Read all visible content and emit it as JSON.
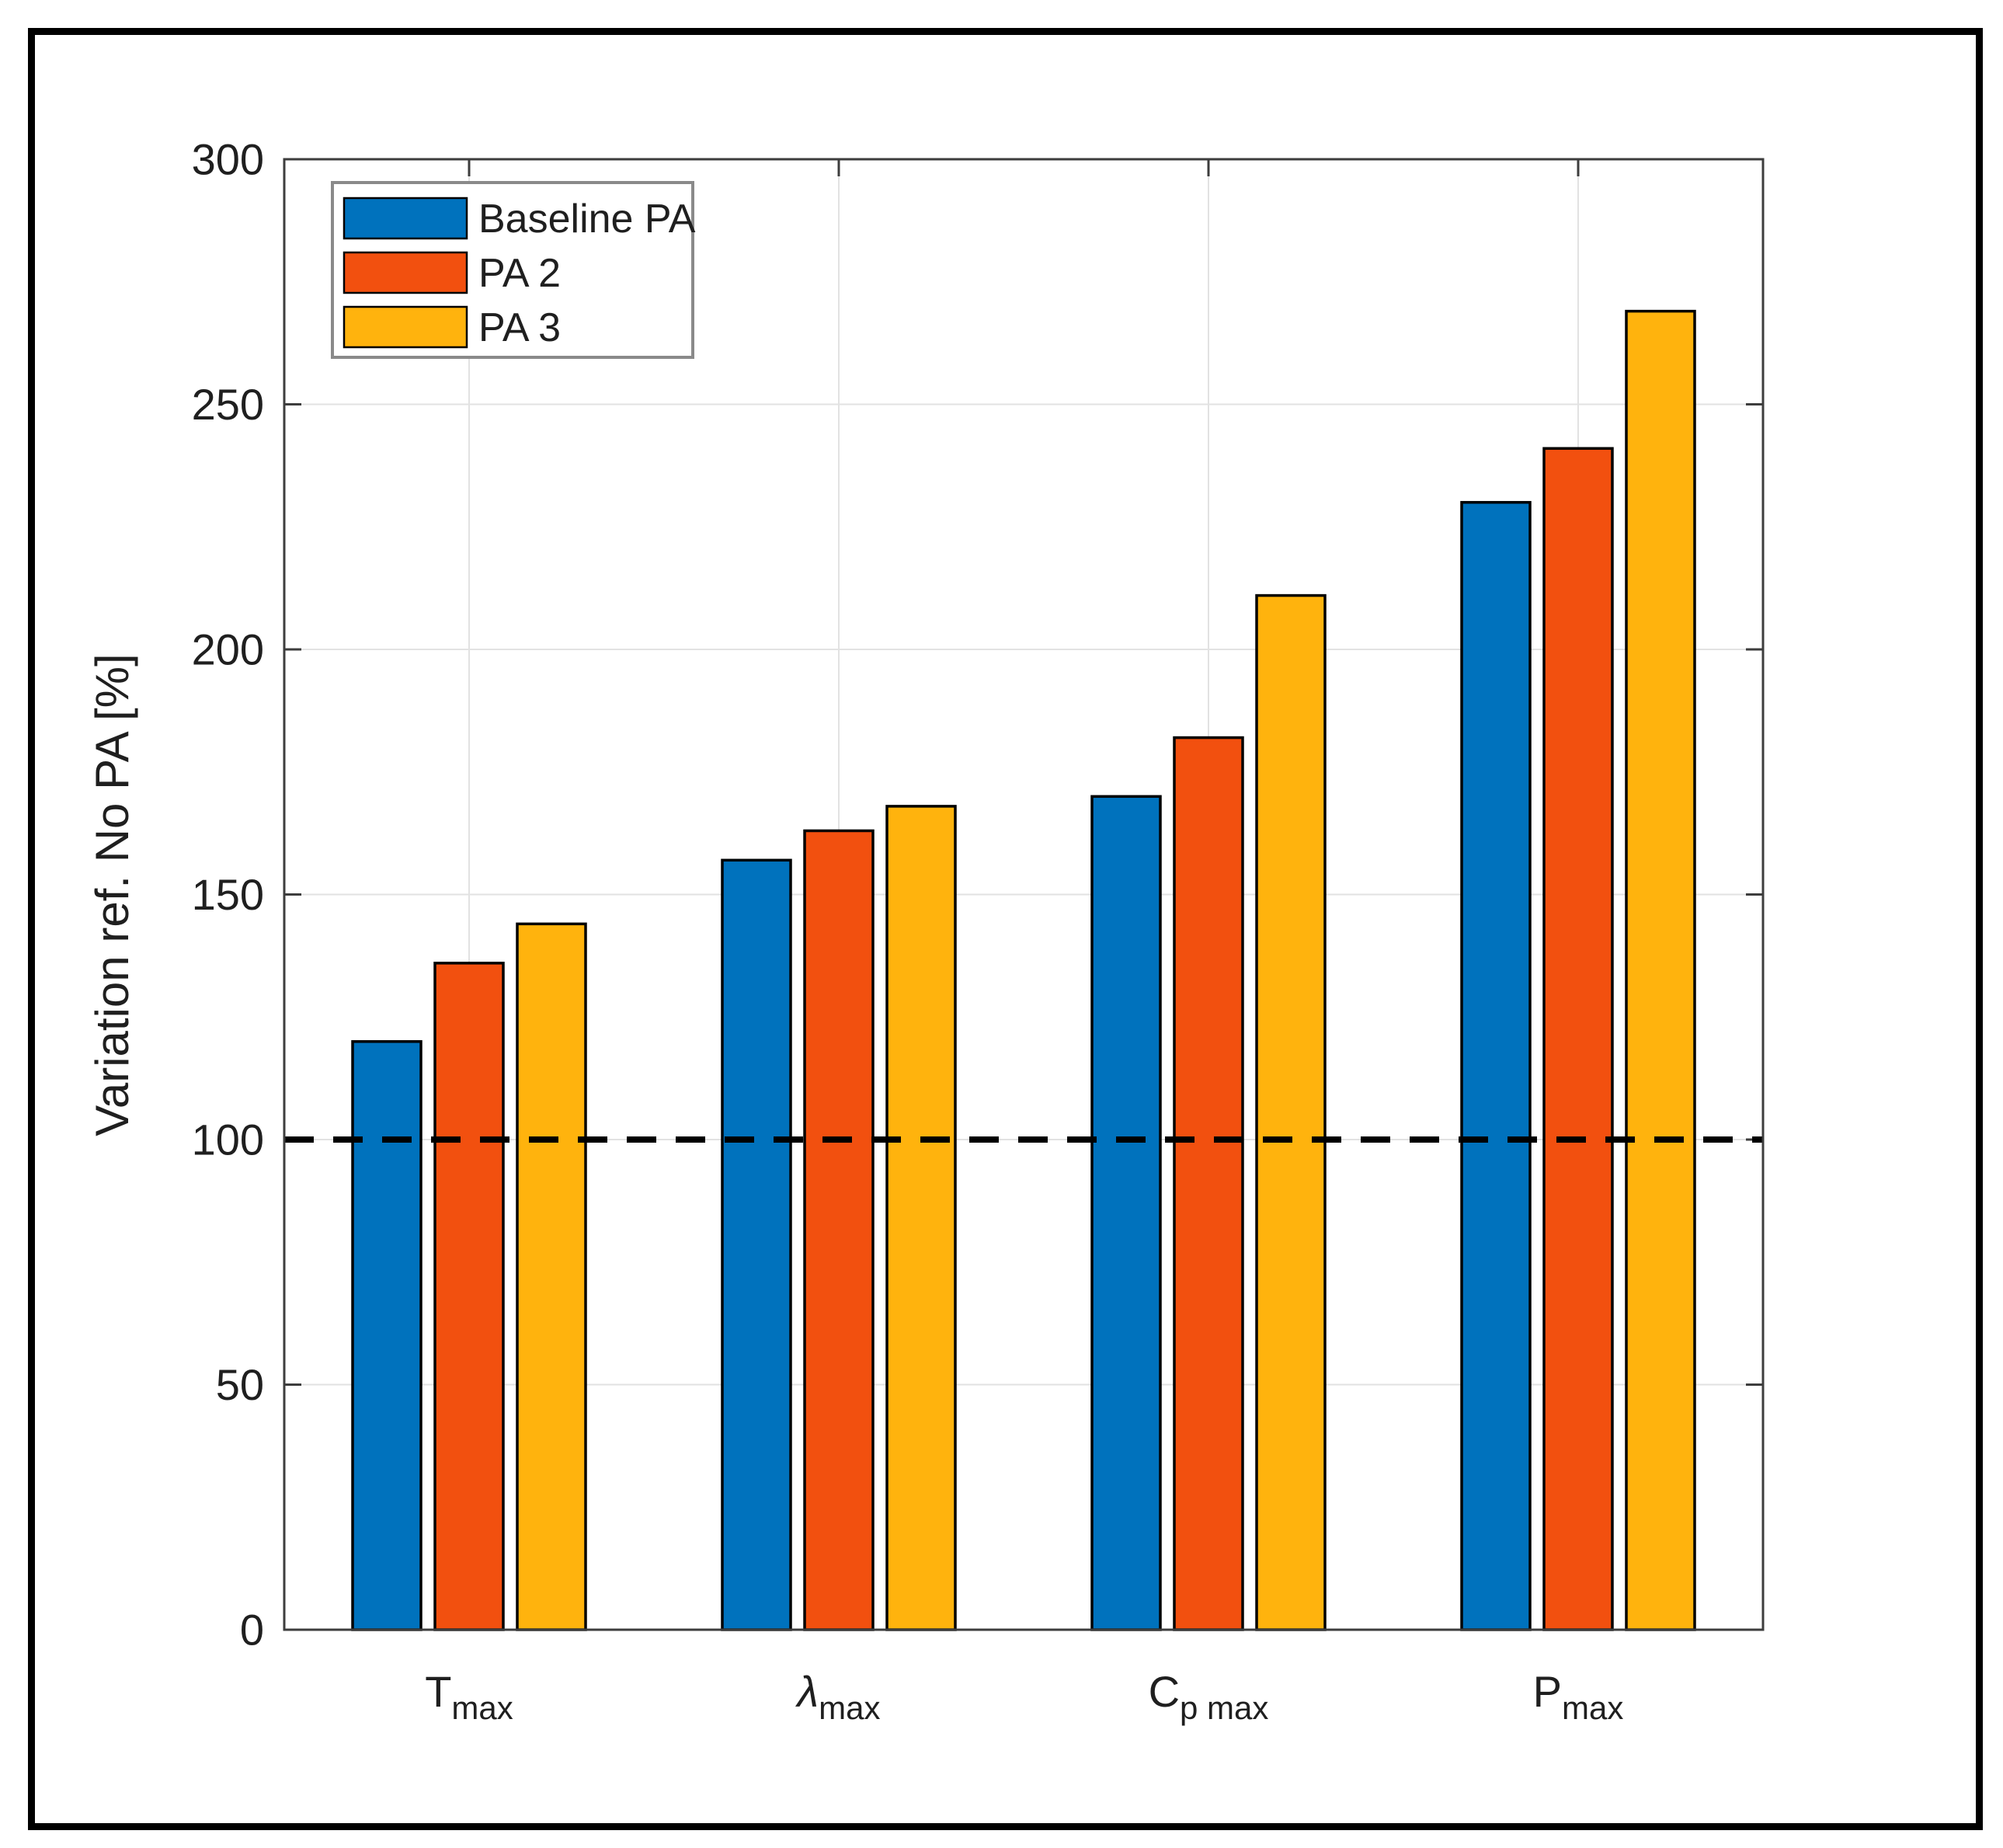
{
  "figure": {
    "background": "#ffffff",
    "border_color": "#000000"
  },
  "chart_data": {
    "type": "bar",
    "title": "",
    "xlabel": "",
    "ylabel": "Variation ref. No PA [%]",
    "ylim": [
      0,
      300
    ],
    "yticks": [
      0,
      50,
      100,
      150,
      200,
      250,
      300
    ],
    "grid": true,
    "legend_position": "top-left",
    "categories": [
      {
        "main": "T",
        "sub": "max",
        "italic": false,
        "slug": "tmax"
      },
      {
        "main": "λ",
        "sub": "max",
        "italic": true,
        "slug": "lambda-max"
      },
      {
        "main": "C",
        "sub": "p max",
        "italic": false,
        "slug": "cp-max"
      },
      {
        "main": "P",
        "sub": "max",
        "italic": false,
        "slug": "pmax"
      }
    ],
    "series": [
      {
        "name": "Baseline PA",
        "color": "#0072BD",
        "values": [
          120,
          157,
          170,
          230
        ]
      },
      {
        "name": "PA 2",
        "color": "#F2500F",
        "values": [
          136,
          163,
          182,
          241
        ]
      },
      {
        "name": "PA 3",
        "color": "#FFB30D",
        "values": [
          144,
          168,
          211,
          269
        ]
      }
    ],
    "reference_line": {
      "value": 100,
      "style": "dashed",
      "color": "#000000"
    },
    "bar_outline_color": "#000000",
    "axis_color": "#3d3d3d",
    "grid_color": "#e2e2e2",
    "tick_label_color": "#1f1f1f"
  }
}
